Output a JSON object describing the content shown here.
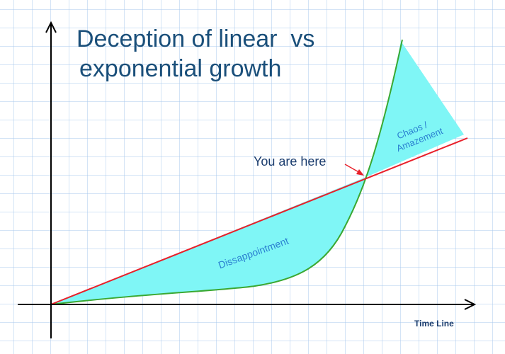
{
  "title": {
    "lines": [
      "Deception of linear  vs",
      "exponential growth"
    ]
  },
  "labels": {
    "you_are_here": "You are here",
    "disappointment": "Dissappointment",
    "chaos": [
      "Chaos /",
      "Amazement"
    ],
    "x_axis": "Time Line"
  }
}
